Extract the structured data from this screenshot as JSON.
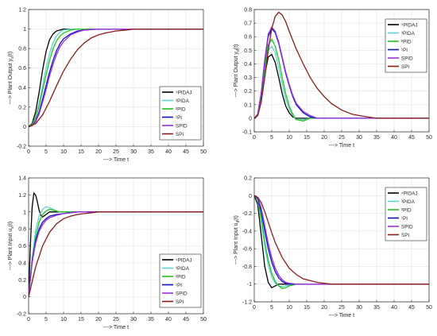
{
  "figure": {
    "legend_entries": [
      {
        "label": "⁴PIDAJ",
        "color": "#000000"
      },
      {
        "label": "³PIDA",
        "color": "#5fd3d3"
      },
      {
        "label": "²PID",
        "color": "#22c422"
      },
      {
        "label": "¹PI",
        "color": "#1010c8"
      },
      {
        "label": "SPID",
        "color": "#9b30d9"
      },
      {
        "label": "SPI",
        "color": "#8b1a1a"
      }
    ]
  },
  "chart_data": [
    {
      "type": "line",
      "panel": "top-left",
      "xlabel": "---> Time t",
      "ylabel": "---> Plant Output y_s(t)",
      "xlim": [
        0,
        50
      ],
      "ylim": [
        -0.2,
        1.2
      ],
      "xticks": [
        0,
        5,
        10,
        15,
        20,
        25,
        30,
        35,
        40,
        45,
        50
      ],
      "yticks": [
        -0.2,
        0,
        0.2,
        0.4,
        0.6,
        0.8,
        1,
        1.2
      ],
      "grid": true,
      "legend_position": "bottom-right",
      "series": [
        {
          "name": "⁴PIDAJ",
          "x": [
            0,
            1,
            2,
            3,
            4,
            5,
            6,
            7,
            8,
            9,
            10,
            12,
            14,
            16,
            20,
            50
          ],
          "y": [
            0,
            0.03,
            0.15,
            0.35,
            0.58,
            0.77,
            0.89,
            0.95,
            0.98,
            0.99,
            1.0,
            1.0,
            1.0,
            1.0,
            1.0,
            1.0
          ]
        },
        {
          "name": "³PIDA",
          "x": [
            0,
            1,
            2,
            3,
            4,
            5,
            6,
            7,
            8,
            9,
            10,
            12,
            14,
            16,
            20,
            50
          ],
          "y": [
            0,
            0.02,
            0.1,
            0.24,
            0.42,
            0.6,
            0.75,
            0.86,
            0.93,
            0.97,
            0.99,
            1.0,
            1.0,
            1.0,
            1.0,
            1.0
          ]
        },
        {
          "name": "²PID",
          "x": [
            0,
            1,
            2,
            3,
            4,
            5,
            6,
            7,
            8,
            9,
            10,
            12,
            14,
            16,
            20,
            50
          ],
          "y": [
            0,
            0.02,
            0.09,
            0.21,
            0.37,
            0.53,
            0.68,
            0.8,
            0.88,
            0.93,
            0.96,
            0.99,
            1.0,
            1.0,
            1.0,
            1.0
          ]
        },
        {
          "name": "¹PI",
          "x": [
            0,
            1,
            2,
            3,
            4,
            5,
            6,
            7,
            8,
            9,
            10,
            12,
            14,
            16,
            20,
            25,
            50
          ],
          "y": [
            0,
            0.01,
            0.06,
            0.15,
            0.28,
            0.42,
            0.56,
            0.68,
            0.78,
            0.85,
            0.9,
            0.95,
            0.98,
            0.99,
            1.0,
            1.0,
            1.0
          ]
        },
        {
          "name": "SPID",
          "x": [
            0,
            1,
            2,
            3,
            4,
            5,
            6,
            7,
            8,
            9,
            10,
            12,
            14,
            16,
            20,
            25,
            50
          ],
          "y": [
            0,
            0.01,
            0.05,
            0.13,
            0.25,
            0.38,
            0.52,
            0.64,
            0.74,
            0.82,
            0.87,
            0.94,
            0.97,
            0.99,
            1.0,
            1.0,
            1.0
          ]
        },
        {
          "name": "SPI",
          "x": [
            0,
            2,
            4,
            6,
            8,
            10,
            12,
            14,
            16,
            18,
            20,
            22,
            25,
            28,
            30,
            35,
            50
          ],
          "y": [
            0,
            0.03,
            0.12,
            0.26,
            0.42,
            0.57,
            0.69,
            0.79,
            0.86,
            0.91,
            0.94,
            0.96,
            0.98,
            0.99,
            1.0,
            1.0,
            1.0
          ]
        }
      ]
    },
    {
      "type": "line",
      "panel": "top-right",
      "xlabel": "---> Time t",
      "ylabel": "---> Plant Output y_d(t)",
      "xlim": [
        0,
        50
      ],
      "ylim": [
        -0.1,
        0.8
      ],
      "xticks": [
        0,
        5,
        10,
        15,
        20,
        25,
        30,
        35,
        40,
        45,
        50
      ],
      "yticks": [
        -0.1,
        0,
        0.1,
        0.2,
        0.3,
        0.4,
        0.5,
        0.6,
        0.7,
        0.8
      ],
      "grid": true,
      "legend_position": "top-right",
      "series": [
        {
          "name": "⁴PIDAJ",
          "x": [
            0,
            1,
            2,
            3,
            4,
            5,
            6,
            7,
            8,
            9,
            10,
            11,
            12,
            14,
            16,
            20,
            50
          ],
          "y": [
            0,
            0.02,
            0.14,
            0.32,
            0.45,
            0.47,
            0.41,
            0.3,
            0.18,
            0.09,
            0.04,
            0.01,
            0.0,
            0.0,
            0.0,
            0.0,
            0.0
          ]
        },
        {
          "name": "³PIDA",
          "x": [
            0,
            1,
            2,
            3,
            4,
            5,
            6,
            7,
            8,
            9,
            10,
            11,
            12,
            14,
            16,
            20,
            50
          ],
          "y": [
            0,
            0.02,
            0.15,
            0.35,
            0.5,
            0.53,
            0.48,
            0.37,
            0.25,
            0.14,
            0.07,
            0.02,
            -0.01,
            -0.01,
            0.0,
            0.0,
            0.0
          ]
        },
        {
          "name": "²PID",
          "x": [
            0,
            1,
            2,
            3,
            4,
            5,
            6,
            7,
            8,
            9,
            10,
            11,
            12,
            14,
            16,
            20,
            50
          ],
          "y": [
            0,
            0.02,
            0.16,
            0.38,
            0.54,
            0.58,
            0.53,
            0.43,
            0.3,
            0.18,
            0.09,
            0.03,
            -0.01,
            -0.02,
            0.0,
            0.0,
            0.0
          ]
        },
        {
          "name": "¹PI",
          "x": [
            0,
            1,
            2,
            3,
            4,
            5,
            6,
            7,
            8,
            9,
            10,
            11,
            12,
            14,
            16,
            18,
            20,
            25,
            50
          ],
          "y": [
            0,
            0.03,
            0.18,
            0.42,
            0.6,
            0.66,
            0.63,
            0.55,
            0.44,
            0.33,
            0.24,
            0.16,
            0.1,
            0.04,
            0.01,
            0.0,
            0.0,
            0.0,
            0.0
          ]
        },
        {
          "name": "SPID",
          "x": [
            0,
            1,
            2,
            3,
            4,
            5,
            6,
            7,
            8,
            9,
            10,
            11,
            12,
            14,
            16,
            18,
            20,
            25,
            50
          ],
          "y": [
            0,
            0.03,
            0.19,
            0.43,
            0.62,
            0.67,
            0.64,
            0.56,
            0.45,
            0.34,
            0.25,
            0.17,
            0.11,
            0.05,
            0.02,
            0.0,
            0.0,
            0.0,
            0.0
          ]
        },
        {
          "name": "SPI",
          "x": [
            0,
            1,
            2,
            3,
            4,
            5,
            6,
            7,
            8,
            9,
            10,
            12,
            14,
            16,
            18,
            20,
            22,
            25,
            28,
            30,
            35,
            40,
            50
          ],
          "y": [
            0,
            0.02,
            0.12,
            0.3,
            0.5,
            0.66,
            0.75,
            0.78,
            0.76,
            0.71,
            0.64,
            0.51,
            0.4,
            0.3,
            0.22,
            0.16,
            0.11,
            0.06,
            0.03,
            0.02,
            0.0,
            0.0,
            0.0
          ]
        }
      ]
    },
    {
      "type": "line",
      "panel": "bottom-left",
      "xlabel": "---> Time t",
      "ylabel": "---> Plant Input u_s(t)",
      "xlim": [
        0,
        50
      ],
      "ylim": [
        -0.2,
        1.4
      ],
      "xticks": [
        0,
        5,
        10,
        15,
        20,
        25,
        30,
        35,
        40,
        45,
        50
      ],
      "yticks": [
        -0.2,
        0,
        0.2,
        0.4,
        0.6,
        0.8,
        1,
        1.2,
        1.4
      ],
      "grid": true,
      "legend_position": "bottom-right",
      "series": [
        {
          "name": "⁴PIDAJ",
          "x": [
            0,
            0.5,
            1,
            1.5,
            2,
            2.5,
            3,
            3.5,
            4,
            5,
            6,
            7,
            8,
            10,
            50
          ],
          "y": [
            0,
            0.6,
            1.05,
            1.22,
            1.2,
            1.12,
            1.02,
            0.96,
            0.94,
            0.97,
            1.0,
            1.0,
            1.0,
            1.0,
            1.0
          ]
        },
        {
          "name": "³PIDA",
          "x": [
            0,
            1,
            2,
            3,
            4,
            5,
            6,
            7,
            8,
            9,
            10,
            12,
            50
          ],
          "y": [
            0,
            0.45,
            0.78,
            0.95,
            1.03,
            1.06,
            1.05,
            1.03,
            1.01,
            1.0,
            1.0,
            1.0,
            1.0
          ]
        },
        {
          "name": "²PID",
          "x": [
            0,
            1,
            2,
            3,
            4,
            5,
            6,
            7,
            8,
            9,
            10,
            12,
            50
          ],
          "y": [
            0,
            0.4,
            0.7,
            0.88,
            0.97,
            1.01,
            1.03,
            1.02,
            1.01,
            1.0,
            1.0,
            1.0,
            1.0
          ]
        },
        {
          "name": "¹PI",
          "x": [
            0,
            1,
            2,
            3,
            4,
            5,
            6,
            8,
            10,
            12,
            14,
            16,
            50
          ],
          "y": [
            0,
            0.42,
            0.66,
            0.8,
            0.88,
            0.92,
            0.95,
            0.97,
            0.98,
            0.99,
            1.0,
            1.0,
            1.0
          ]
        },
        {
          "name": "SPID",
          "x": [
            0,
            1,
            2,
            3,
            4,
            5,
            6,
            8,
            10,
            12,
            14,
            16,
            50
          ],
          "y": [
            0,
            0.4,
            0.63,
            0.77,
            0.85,
            0.9,
            0.93,
            0.96,
            0.98,
            0.99,
            1.0,
            1.0,
            1.0
          ]
        },
        {
          "name": "SPI",
          "x": [
            0,
            2,
            4,
            6,
            8,
            10,
            12,
            14,
            16,
            18,
            20,
            22,
            25,
            30,
            50
          ],
          "y": [
            0,
            0.35,
            0.6,
            0.76,
            0.86,
            0.92,
            0.95,
            0.97,
            0.98,
            0.99,
            1.0,
            1.0,
            1.0,
            1.0,
            1.0
          ]
        }
      ]
    },
    {
      "type": "line",
      "panel": "bottom-right",
      "xlabel": "---> Time t",
      "ylabel": "---> Plant Input u_d(t)",
      "xlim": [
        0,
        50
      ],
      "ylim": [
        -1.2,
        0.2
      ],
      "xticks": [
        0,
        5,
        10,
        15,
        20,
        25,
        30,
        35,
        40,
        45,
        50
      ],
      "yticks": [
        -1.2,
        -1,
        -0.8,
        -0.6,
        -0.4,
        -0.2,
        0,
        0.2
      ],
      "grid": true,
      "legend_position": "top-right",
      "series": [
        {
          "name": "⁴PIDAJ",
          "x": [
            0,
            1,
            2,
            3,
            4,
            5,
            6,
            7,
            8,
            10,
            12,
            50
          ],
          "y": [
            0,
            -0.1,
            -0.45,
            -0.8,
            -0.98,
            -1.04,
            -1.02,
            -1.0,
            -1.0,
            -1.0,
            -1.0,
            -1.0
          ]
        },
        {
          "name": "³PIDA",
          "x": [
            0,
            1,
            2,
            3,
            4,
            5,
            6,
            7,
            8,
            9,
            10,
            12,
            14,
            50
          ],
          "y": [
            0,
            -0.05,
            -0.3,
            -0.58,
            -0.78,
            -0.92,
            -0.99,
            -1.02,
            -1.03,
            -1.02,
            -1.01,
            -1.0,
            -1.0,
            -1.0
          ]
        },
        {
          "name": "²PID",
          "x": [
            0,
            1,
            2,
            3,
            4,
            5,
            6,
            7,
            8,
            9,
            10,
            12,
            14,
            50
          ],
          "y": [
            0,
            -0.04,
            -0.25,
            -0.52,
            -0.73,
            -0.88,
            -0.97,
            -1.02,
            -1.05,
            -1.04,
            -1.02,
            -1.0,
            -1.0,
            -1.0
          ]
        },
        {
          "name": "¹PI",
          "x": [
            0,
            1,
            2,
            3,
            4,
            5,
            6,
            7,
            8,
            9,
            10,
            12,
            14,
            16,
            50
          ],
          "y": [
            0,
            -0.03,
            -0.18,
            -0.4,
            -0.6,
            -0.75,
            -0.86,
            -0.93,
            -0.97,
            -0.99,
            -1.0,
            -1.0,
            -1.0,
            -1.0,
            -1.0
          ]
        },
        {
          "name": "SPID",
          "x": [
            0,
            1,
            2,
            3,
            4,
            5,
            6,
            7,
            8,
            9,
            10,
            12,
            14,
            16,
            50
          ],
          "y": [
            0,
            -0.02,
            -0.14,
            -0.34,
            -0.54,
            -0.7,
            -0.82,
            -0.9,
            -0.95,
            -0.98,
            -0.99,
            -1.0,
            -1.0,
            -1.0,
            -1.0
          ]
        },
        {
          "name": "SPI",
          "x": [
            0,
            1,
            2,
            3,
            4,
            5,
            6,
            8,
            10,
            12,
            14,
            16,
            18,
            20,
            22,
            25,
            30,
            50
          ],
          "y": [
            0,
            -0.02,
            -0.08,
            -0.18,
            -0.3,
            -0.42,
            -0.53,
            -0.7,
            -0.82,
            -0.89,
            -0.94,
            -0.96,
            -0.98,
            -0.99,
            -1.0,
            -1.0,
            -1.0,
            -1.0
          ]
        }
      ]
    }
  ]
}
